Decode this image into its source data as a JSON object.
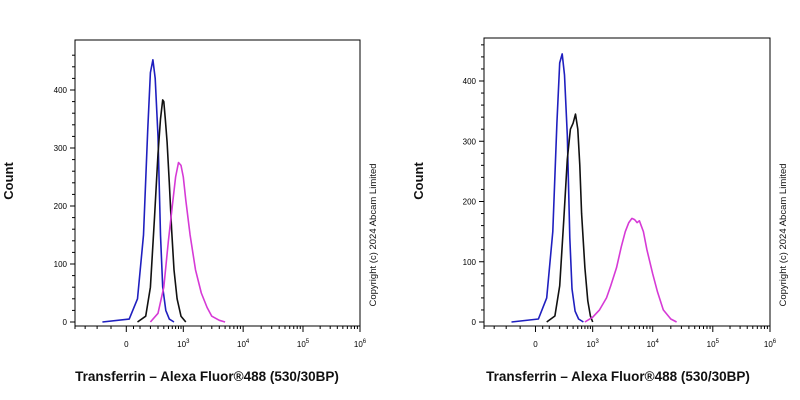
{
  "chart_data": [
    {
      "type": "line",
      "xlabel": "Transferrin – Alexa Fluor®488 (530/30BP)",
      "ylabel": "Count",
      "x_scale": "biexponential",
      "xlim": [
        -200,
        1000000
      ],
      "ylim": [
        0,
        480
      ],
      "yticks": [
        0,
        100,
        200,
        300,
        400
      ],
      "xtick_labels": [
        {
          "value": 0,
          "base": "0",
          "exp": ""
        },
        {
          "value": 1000,
          "base": "10",
          "exp": "3"
        },
        {
          "value": 10000,
          "base": "10",
          "exp": "4"
        },
        {
          "value": 100000,
          "base": "10",
          "exp": "5"
        },
        {
          "value": 1000000,
          "base": "10",
          "exp": "6"
        }
      ],
      "annotation": "Copyright (c) 2024 Abcam Limited",
      "series": [
        {
          "color": "#1f1fbf",
          "x": [
            -80,
            20,
            80,
            130,
            170,
            200,
            230,
            260,
            300,
            340,
            380,
            440,
            520,
            650
          ],
          "y": [
            0,
            5,
            40,
            150,
            330,
            430,
            452,
            420,
            320,
            150,
            60,
            20,
            5,
            0
          ]
        },
        {
          "color": "#111111",
          "x": [
            80,
            150,
            200,
            250,
            300,
            340,
            380,
            400,
            430,
            470,
            520,
            580,
            650,
            750,
            900,
            1100
          ],
          "y": [
            0,
            10,
            60,
            180,
            290,
            350,
            383,
            380,
            350,
            310,
            240,
            160,
            90,
            40,
            10,
            0
          ]
        },
        {
          "color": "#d63ad6",
          "x": [
            200,
            300,
            400,
            500,
            600,
            700,
            800,
            900,
            1000,
            1100,
            1300,
            1600,
            2000,
            2500,
            3000,
            4000,
            5000
          ],
          "y": [
            0,
            15,
            60,
            140,
            200,
            250,
            275,
            270,
            250,
            210,
            150,
            90,
            50,
            25,
            10,
            3,
            0
          ]
        }
      ]
    },
    {
      "type": "line",
      "xlabel": "Transferrin – Alexa Fluor®488 (530/30BP)",
      "ylabel": "Count",
      "x_scale": "biexponential",
      "xlim": [
        -200,
        1000000
      ],
      "ylim": [
        0,
        480
      ],
      "yticks": [
        0,
        100,
        200,
        300,
        400
      ],
      "xtick_labels": [
        {
          "value": 0,
          "base": "0",
          "exp": ""
        },
        {
          "value": 1000,
          "base": "10",
          "exp": "3"
        },
        {
          "value": 10000,
          "base": "10",
          "exp": "4"
        },
        {
          "value": 100000,
          "base": "10",
          "exp": "5"
        },
        {
          "value": 1000000,
          "base": "10",
          "exp": "6"
        }
      ],
      "annotation": "Copyright (c) 2024 Abcam Limited",
      "series": [
        {
          "color": "#1f1fbf",
          "x": [
            -80,
            20,
            80,
            130,
            170,
            200,
            230,
            260,
            300,
            340,
            380,
            440,
            520,
            650
          ],
          "y": [
            0,
            5,
            40,
            150,
            330,
            430,
            445,
            410,
            310,
            140,
            55,
            18,
            5,
            0
          ]
        },
        {
          "color": "#111111",
          "x": [
            80,
            150,
            200,
            250,
            300,
            350,
            400,
            450,
            500,
            550,
            600,
            700,
            800,
            900,
            1000
          ],
          "y": [
            0,
            10,
            60,
            170,
            270,
            320,
            330,
            345,
            320,
            260,
            180,
            90,
            35,
            10,
            0
          ]
        },
        {
          "color": "#d63ad6",
          "x": [
            700,
            1000,
            1300,
            1700,
            2000,
            2500,
            3000,
            3500,
            4000,
            4500,
            5000,
            5500,
            6000,
            7000,
            8000,
            10000,
            12000,
            15000,
            20000,
            25000
          ],
          "y": [
            0,
            8,
            20,
            40,
            60,
            90,
            125,
            150,
            165,
            172,
            170,
            165,
            168,
            150,
            120,
            80,
            50,
            20,
            5,
            0
          ]
        }
      ]
    }
  ]
}
